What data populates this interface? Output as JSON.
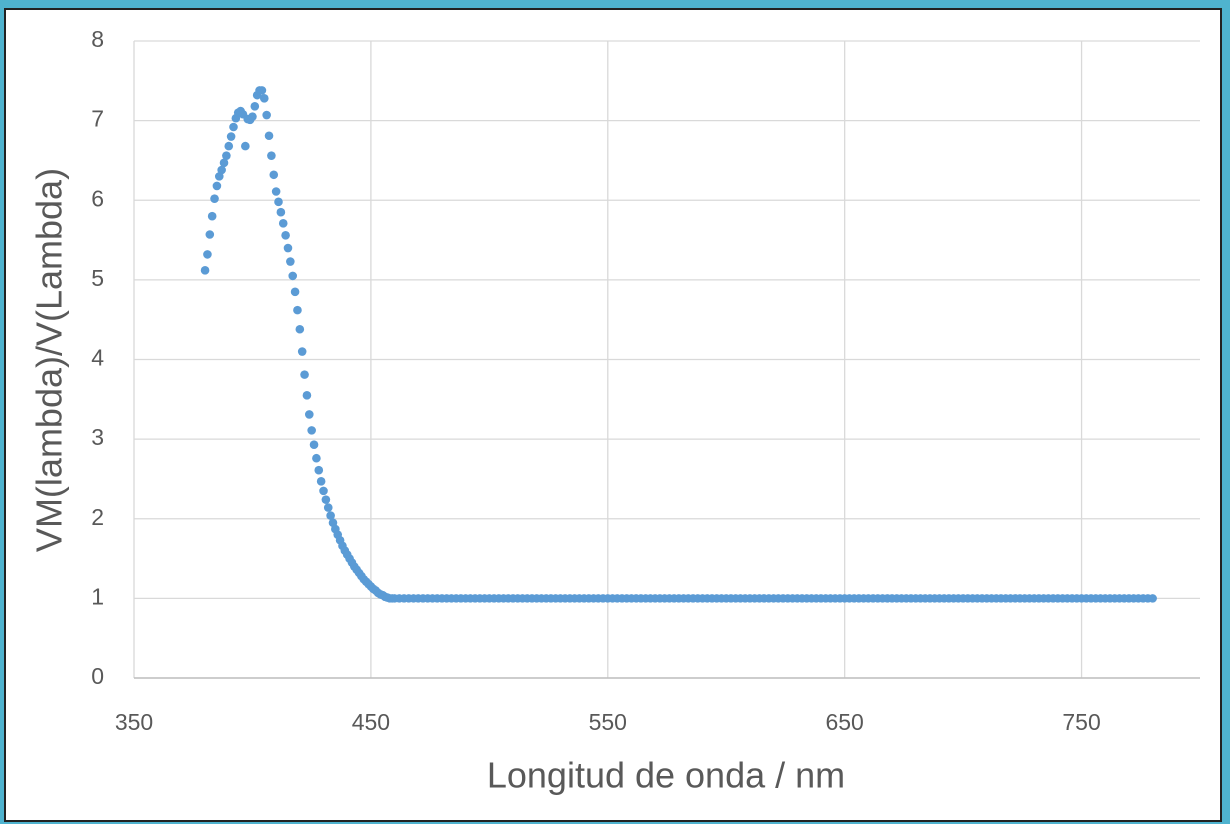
{
  "chart_data": {
    "type": "scatter",
    "x_label": "Longitud de onda / nm",
    "y_label": "VM(lambda)/V(Lambda)",
    "xlim": [
      350,
      800
    ],
    "xticks": [
      350,
      450,
      550,
      650,
      750
    ],
    "ylim": [
      0,
      8
    ],
    "yticks": [
      0,
      1,
      2,
      3,
      4,
      5,
      6,
      7,
      8
    ],
    "grid": true,
    "series": [
      {
        "color": "#5b9bd5",
        "x": [
          380,
          381,
          382,
          383,
          384,
          385,
          386,
          387,
          388,
          389,
          390,
          391,
          392,
          393,
          394,
          395,
          396,
          397,
          398,
          399,
          400,
          401,
          402,
          403,
          404,
          405,
          406,
          407,
          408,
          409,
          410,
          411,
          412,
          413,
          414,
          415,
          416,
          417,
          418,
          419,
          420,
          421,
          422,
          423,
          424,
          425,
          426,
          427,
          428,
          429,
          430,
          431,
          432,
          433,
          434,
          435,
          436,
          437,
          438,
          439,
          440,
          441,
          442,
          443,
          444,
          445,
          446,
          447,
          448,
          449,
          450,
          451,
          452,
          453,
          454,
          455,
          456,
          457,
          458,
          459,
          460,
          462,
          464,
          466,
          468,
          470,
          472,
          474,
          476,
          478,
          480,
          482,
          484,
          486,
          488,
          490,
          492,
          494,
          496,
          498,
          500,
          502,
          504,
          506,
          508,
          510,
          512,
          514,
          516,
          518,
          520,
          522,
          524,
          526,
          528,
          530,
          532,
          534,
          536,
          538,
          540,
          542,
          544,
          546,
          548,
          550,
          552,
          554,
          556,
          558,
          560,
          562,
          564,
          566,
          568,
          570,
          572,
          574,
          576,
          578,
          580,
          582,
          584,
          586,
          588,
          590,
          592,
          594,
          596,
          598,
          600,
          602,
          604,
          606,
          608,
          610,
          612,
          614,
          616,
          618,
          620,
          622,
          624,
          626,
          628,
          630,
          632,
          634,
          636,
          638,
          640,
          642,
          644,
          646,
          648,
          650,
          652,
          654,
          656,
          658,
          660,
          662,
          664,
          666,
          668,
          670,
          672,
          674,
          676,
          678,
          680,
          682,
          684,
          686,
          688,
          690,
          692,
          694,
          696,
          698,
          700,
          702,
          704,
          706,
          708,
          710,
          712,
          714,
          716,
          718,
          720,
          722,
          724,
          726,
          728,
          730,
          732,
          734,
          736,
          738,
          740,
          742,
          744,
          746,
          748,
          750,
          752,
          754,
          756,
          758,
          760,
          762,
          764,
          766,
          768,
          770,
          772,
          774,
          776,
          778,
          780
        ],
        "values": [
          5.12,
          5.32,
          5.57,
          5.8,
          6.02,
          6.18,
          6.3,
          6.38,
          6.47,
          6.56,
          6.68,
          6.8,
          6.92,
          7.03,
          7.1,
          7.12,
          7.08,
          6.68,
          7.02,
          7.01,
          7.05,
          7.18,
          7.32,
          7.38,
          7.38,
          7.28,
          7.07,
          6.81,
          6.56,
          6.32,
          6.11,
          5.98,
          5.85,
          5.71,
          5.56,
          5.4,
          5.23,
          5.05,
          4.85,
          4.62,
          4.38,
          4.1,
          3.81,
          3.55,
          3.31,
          3.11,
          2.93,
          2.76,
          2.61,
          2.47,
          2.35,
          2.24,
          2.14,
          2.04,
          1.95,
          1.87,
          1.8,
          1.73,
          1.66,
          1.6,
          1.55,
          1.5,
          1.45,
          1.4,
          1.36,
          1.32,
          1.28,
          1.24,
          1.21,
          1.18,
          1.15,
          1.12,
          1.1,
          1.07,
          1.05,
          1.04,
          1.02,
          1.01,
          1,
          1,
          1,
          1,
          1,
          1,
          1,
          1,
          1,
          1,
          1,
          1,
          1,
          1,
          1,
          1,
          1,
          1,
          1,
          1,
          1,
          1,
          1,
          1,
          1,
          1,
          1,
          1,
          1,
          1,
          1,
          1,
          1,
          1,
          1,
          1,
          1,
          1,
          1,
          1,
          1,
          1,
          1,
          1,
          1,
          1,
          1,
          1,
          1,
          1,
          1,
          1,
          1,
          1,
          1,
          1,
          1,
          1,
          1,
          1,
          1,
          1,
          1,
          1,
          1,
          1,
          1,
          1,
          1,
          1,
          1,
          1,
          1,
          1,
          1,
          1,
          1,
          1,
          1,
          1,
          1,
          1,
          1,
          1,
          1,
          1,
          1,
          1,
          1,
          1,
          1,
          1,
          1,
          1,
          1,
          1,
          1,
          1,
          1,
          1,
          1,
          1,
          1,
          1,
          1,
          1,
          1,
          1,
          1,
          1,
          1,
          1,
          1,
          1,
          1,
          1,
          1,
          1,
          1,
          1,
          1,
          1,
          1,
          1,
          1,
          1,
          1,
          1,
          1,
          1,
          1,
          1,
          1,
          1,
          1,
          1,
          1,
          1,
          1,
          1,
          1,
          1,
          1,
          1,
          1,
          1,
          1,
          1,
          1,
          1,
          1,
          1,
          1,
          1,
          1,
          1,
          1,
          1,
          1,
          1,
          1,
          1,
          1
        ]
      }
    ]
  }
}
